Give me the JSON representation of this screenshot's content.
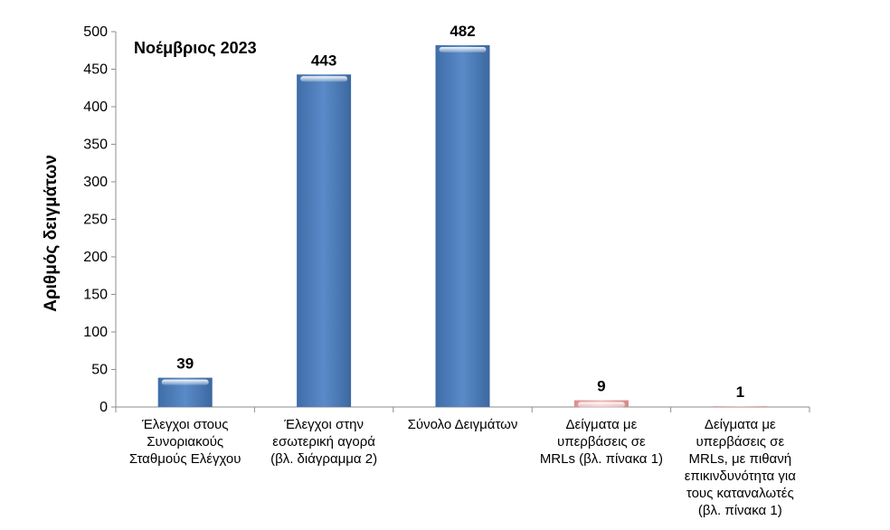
{
  "chart_data": {
    "type": "bar",
    "title": "Νοέμβριος 2023",
    "xlabel": "",
    "ylabel": "Αριθμός δειγμάτων",
    "ylim": [
      0,
      500
    ],
    "yticks": [
      0,
      50,
      100,
      150,
      200,
      250,
      300,
      350,
      400,
      450,
      500
    ],
    "grid": false,
    "legend": "none",
    "categories": [
      [
        "Έλεγχοι στους",
        "Συνοριακούς",
        "Σταθμούς Ελέγχου"
      ],
      [
        "Έλεγχοι στην",
        "εσωτερική αγορά",
        "(βλ. διάγραμμα 2)"
      ],
      [
        "Σύνολο Δειγμάτων"
      ],
      [
        "Δείγματα με",
        "υπερβάσεις σε",
        "MRLs (βλ. πίνακα 1)"
      ],
      [
        "Δείγματα με",
        "υπερβάσεις σε",
        "MRLs, με πιθανή",
        "επικινδυνότητα για",
        "τους καταναλωτές",
        "(βλ. πίνακα 1)"
      ]
    ],
    "values": [
      39,
      443,
      482,
      9,
      1
    ],
    "data_labels": [
      "39",
      "443",
      "482",
      "9",
      "1"
    ],
    "colors": [
      "#4f81bd",
      "#4f81bd",
      "#4f81bd",
      "#e6a3a3",
      "#e6a3a3"
    ]
  }
}
